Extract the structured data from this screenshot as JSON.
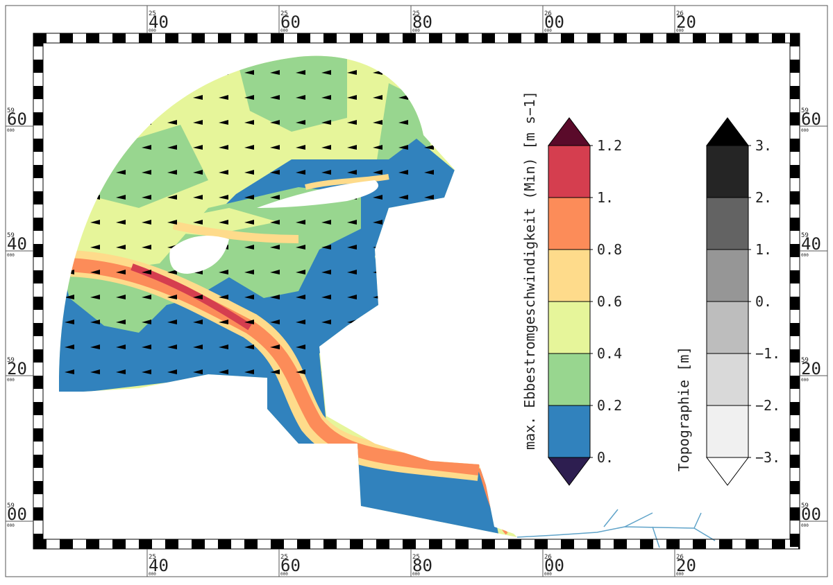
{
  "map": {
    "x_labels": [
      {
        "degree": "25",
        "minute": "40",
        "second": "000"
      },
      {
        "degree": "25",
        "minute": "60",
        "second": "000"
      },
      {
        "degree": "25",
        "minute": "80",
        "second": "000"
      },
      {
        "degree": "26",
        "minute": "00",
        "second": "000"
      },
      {
        "degree": "26",
        "minute": "20",
        "second": "000"
      }
    ],
    "y_labels": [
      {
        "degree": "59",
        "minute": "60",
        "second": "000"
      },
      {
        "degree": "59",
        "minute": "40",
        "second": "000"
      },
      {
        "degree": "59",
        "minute": "20",
        "second": "000"
      },
      {
        "degree": "59",
        "minute": "00",
        "second": "000"
      }
    ]
  },
  "colorbars": [
    {
      "title": "max. Ebbestromgeschwindigkeit (Min) [m s−1]",
      "ticks": [
        {
          "value": 0,
          "label": "0."
        },
        0.2,
        0.4,
        0.6,
        0.8,
        {
          "value": 1,
          "label": "1."
        },
        1.2
      ],
      "colors": [
        "#3182bd",
        "#98d68f",
        "#e6f59a",
        "#fedb8b",
        "#fc8c59",
        "#d53e4f"
      ],
      "under_color": "#2d1e50",
      "over_color": "#5a0a2a"
    },
    {
      "title": "Topographie [m]",
      "ticks": [
        {
          "value": -3,
          "label": "−3."
        },
        {
          "value": -2,
          "label": "−2."
        },
        {
          "value": -1,
          "label": "−1."
        },
        {
          "value": 0,
          "label": "0."
        },
        {
          "value": 1,
          "label": "1."
        },
        {
          "value": 2,
          "label": "2."
        },
        {
          "value": 3,
          "label": "3."
        }
      ],
      "colors": [
        "#f0f0f0",
        "#d9d9d9",
        "#bdbdbd",
        "#969696",
        "#636363",
        "#252525"
      ],
      "under_color": "#ffffff",
      "over_color": "#000000"
    }
  ]
}
